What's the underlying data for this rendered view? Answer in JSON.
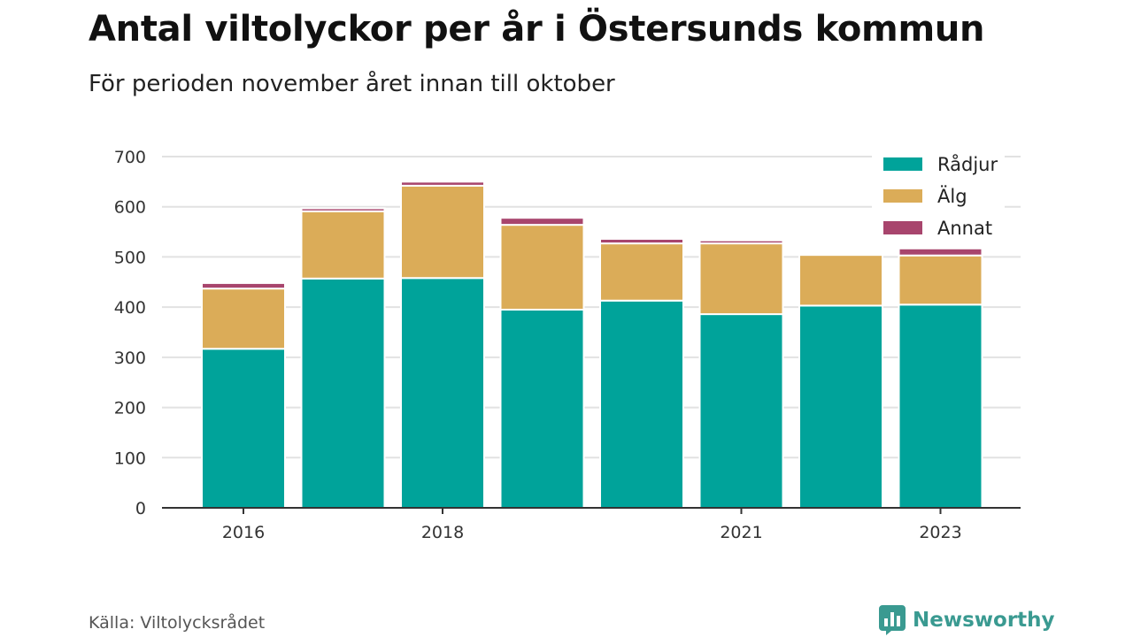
{
  "title": "Antal viltolyckor per år i Östersunds kommun",
  "subtitle": "För perioden november året innan till oktober",
  "source": "Källa: Viltolycksrådet",
  "brand": "Newsworthy",
  "colors": {
    "radjur": "#00a39a",
    "alg": "#dbac58",
    "annat": "#a8456d",
    "brand": "#3a9a91",
    "grid": "#e2e2e2",
    "axis": "#333333"
  },
  "chart_data": {
    "type": "bar",
    "stacked": true,
    "x": [
      2016,
      2017,
      2018,
      2019,
      2020,
      2021,
      2022,
      2023
    ],
    "x_tick_labels": [
      "2016",
      "",
      "2018",
      "",
      "",
      "2021",
      "",
      "2023"
    ],
    "series": [
      {
        "name": "Rådjur",
        "key": "radjur",
        "values": [
          317,
          457,
          458,
          395,
          413,
          386,
          403,
          405
        ]
      },
      {
        "name": "Älg",
        "key": "alg",
        "values": [
          120,
          134,
          184,
          169,
          114,
          141,
          101,
          98
        ]
      },
      {
        "name": "Annat",
        "key": "annat",
        "values": [
          11,
          6,
          8,
          14,
          9,
          6,
          0,
          14
        ]
      }
    ],
    "ylim": [
      0,
      700
    ],
    "yticks": [
      0,
      100,
      200,
      300,
      400,
      500,
      600,
      700
    ],
    "grid": true,
    "legend": "top-right"
  }
}
